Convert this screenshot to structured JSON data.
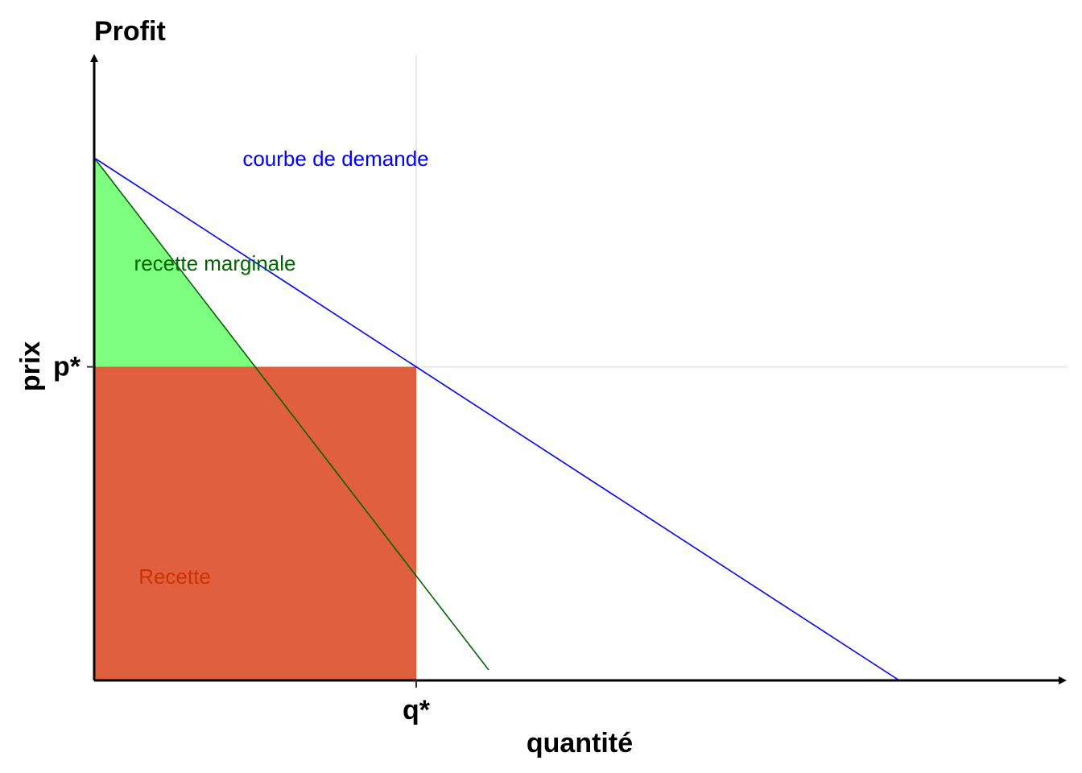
{
  "chart_data": {
    "type": "line",
    "title": "Profit",
    "xlabel": "quantité",
    "ylabel": "prix",
    "xlim": [
      0,
      12
    ],
    "ylim": [
      0,
      10
    ],
    "grid": "only at q* and p*",
    "legend": "none",
    "x_ticks": [
      {
        "value": 4,
        "label": "q*"
      }
    ],
    "y_ticks": [
      {
        "value": 6,
        "label": "p*"
      }
    ],
    "q_star": 4,
    "p_star": 6,
    "series": [
      {
        "key": "demand",
        "color": "#0000ff",
        "x": [
          0,
          10
        ],
        "y": [
          10,
          0
        ]
      },
      {
        "key": "marginal_revenue",
        "color": "#006400",
        "x": [
          0,
          4.9
        ],
        "y": [
          10,
          0.2
        ]
      }
    ],
    "areas": [
      {
        "key": "revenue_area",
        "color": "#808000",
        "opacity": 0.5,
        "polygon": [
          [
            0,
            0
          ],
          [
            4,
            0
          ],
          [
            4,
            6
          ],
          [
            0,
            6
          ]
        ]
      },
      {
        "key": "red_area",
        "color": "#ff0000",
        "opacity": 0.5,
        "polygon": [
          [
            0,
            0
          ],
          [
            4,
            0
          ],
          [
            4,
            6
          ],
          [
            0,
            6
          ]
        ]
      },
      {
        "key": "green_area",
        "color": "#00ff00",
        "opacity": 0.5,
        "polygon": [
          [
            0,
            10
          ],
          [
            2,
            6
          ],
          [
            0,
            6
          ]
        ]
      }
    ],
    "annotations": [
      {
        "key": "demand_label",
        "text": "courbe de demande",
        "x": 3,
        "y": 10,
        "color": "#0000ff"
      },
      {
        "key": "mr_label",
        "text": "recette marginale",
        "x": 1.5,
        "y": 8,
        "color": "#006400"
      },
      {
        "key": "recette_label",
        "text": "Recette",
        "x": 1,
        "y": 2,
        "color": "#cc3300"
      }
    ]
  }
}
